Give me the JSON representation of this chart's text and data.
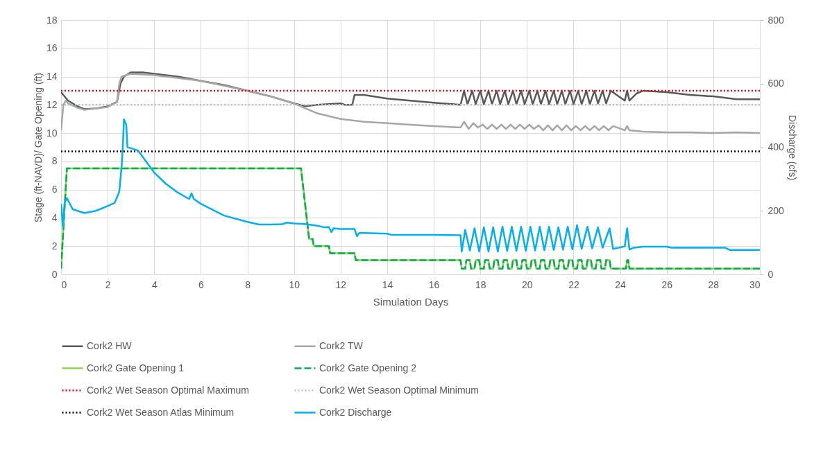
{
  "chart_data": {
    "type": "line",
    "xlabel": "Simulation Days",
    "ylabel": "Stage (ft-NAVD)/ Gate Opening (ft)",
    "y2label": "Discharge (cfs)",
    "xlim": [
      0,
      30
    ],
    "xticks": [
      0,
      2,
      4,
      6,
      8,
      10,
      12,
      14,
      16,
      18,
      20,
      22,
      24,
      26,
      28,
      30
    ],
    "ylim": [
      0,
      18
    ],
    "yticks": [
      0,
      2,
      4,
      6,
      8,
      10,
      12,
      14,
      16,
      18
    ],
    "y2lim": [
      0,
      800
    ],
    "y2ticks": [
      0,
      200,
      400,
      600,
      800
    ],
    "grid": true,
    "legend": "bottom",
    "series": [
      {
        "name": "Cork2 HW",
        "color": "#595959",
        "line_style": "solid",
        "x": [
          0,
          0.3,
          0.7,
          1,
          1.5,
          2,
          2.4,
          2.55,
          2.7,
          3,
          3.5,
          4,
          5,
          6,
          7,
          8,
          9,
          10,
          10.5,
          11,
          11.5,
          12,
          12.2,
          12.5,
          12.6,
          13,
          14,
          15,
          16,
          17.15,
          17.3,
          17.45,
          17.65,
          17.8,
          18.0,
          18.15,
          18.35,
          18.5,
          18.7,
          18.85,
          19.05,
          19.2,
          19.4,
          19.55,
          19.75,
          19.9,
          20.1,
          20.25,
          20.45,
          20.6,
          20.8,
          20.95,
          21.15,
          21.3,
          21.5,
          21.65,
          21.85,
          22.0,
          22.2,
          22.35,
          22.55,
          22.7,
          22.9,
          23.05,
          23.25,
          23.4,
          23.6,
          24.2,
          24.3,
          24.4,
          24.7,
          25,
          26,
          27,
          28,
          29,
          30
        ],
        "values": [
          12.9,
          12.3,
          11.9,
          11.7,
          11.75,
          11.9,
          12.2,
          13.5,
          14.0,
          14.3,
          14.3,
          14.2,
          14.0,
          13.7,
          13.4,
          13.0,
          12.6,
          12.1,
          11.9,
          12.0,
          12.05,
          12.1,
          12.0,
          12.0,
          12.7,
          12.7,
          12.45,
          12.3,
          12.15,
          12.0,
          13.0,
          12.05,
          13.0,
          12.05,
          13.0,
          12.05,
          13.0,
          12.05,
          13.0,
          12.05,
          13.0,
          12.05,
          13.0,
          12.05,
          13.0,
          12.05,
          13.0,
          12.05,
          13.0,
          12.05,
          13.0,
          12.05,
          13.0,
          12.05,
          13.0,
          12.05,
          13.0,
          12.05,
          13.0,
          12.05,
          13.0,
          12.05,
          13.0,
          12.1,
          13.0,
          12.1,
          13.0,
          12.3,
          13.0,
          12.3,
          12.8,
          13.0,
          12.9,
          12.7,
          12.6,
          12.4,
          12.4
        ]
      },
      {
        "name": "Cork2 TW",
        "color": "#a6a6a6",
        "line_style": "solid",
        "x": [
          0,
          0.1,
          0.2,
          0.3,
          0.7,
          1,
          2,
          2.4,
          2.5,
          2.6,
          3,
          4,
          5,
          6,
          7,
          8,
          9,
          10,
          11,
          12,
          13,
          14,
          15,
          16,
          17.15,
          17.3,
          17.5,
          17.7,
          17.9,
          18.1,
          18.3,
          18.5,
          18.7,
          18.9,
          19.1,
          19.3,
          19.5,
          19.7,
          19.9,
          20.1,
          20.3,
          20.5,
          20.7,
          20.9,
          21.1,
          21.3,
          21.5,
          21.7,
          21.9,
          22.1,
          22.3,
          22.5,
          22.7,
          22.9,
          23.1,
          23.3,
          23.5,
          23.7,
          24.2,
          24.3,
          24.4,
          25,
          26,
          27,
          28,
          29,
          30
        ],
        "values": [
          10.2,
          12.0,
          12.3,
          12.1,
          11.8,
          11.65,
          11.85,
          12.2,
          13.5,
          14.0,
          14.2,
          14.1,
          13.9,
          13.7,
          13.35,
          13.0,
          12.6,
          12.1,
          11.4,
          11.0,
          10.8,
          10.7,
          10.6,
          10.5,
          10.4,
          10.8,
          10.3,
          10.7,
          10.4,
          10.6,
          10.3,
          10.6,
          10.3,
          10.6,
          10.3,
          10.6,
          10.3,
          10.6,
          10.3,
          10.6,
          10.3,
          10.55,
          10.2,
          10.55,
          10.2,
          10.55,
          10.2,
          10.55,
          10.2,
          10.5,
          10.2,
          10.5,
          10.2,
          10.5,
          10.2,
          10.5,
          10.2,
          10.5,
          10.2,
          10.5,
          10.2,
          10.1,
          10.05,
          10.05,
          10.0,
          10.05,
          10.0
        ]
      },
      {
        "name": "Cork2 Gate Opening 1",
        "color": "#92d050",
        "line_style": "solid",
        "x": [
          0,
          0.25,
          10.3,
          10.65,
          10.8,
          10.85,
          11.5,
          11.55,
          12.6,
          12.65,
          17.15,
          17.2,
          17.35,
          17.4,
          17.55,
          17.6,
          17.75,
          17.8,
          17.95,
          18.0,
          18.15,
          18.2,
          18.35,
          18.4,
          18.55,
          18.6,
          18.75,
          18.8,
          18.95,
          19.0,
          19.15,
          19.2,
          19.35,
          19.4,
          19.55,
          19.6,
          19.75,
          19.8,
          19.95,
          20.0,
          20.15,
          20.2,
          20.35,
          20.4,
          20.55,
          20.6,
          20.75,
          20.8,
          20.95,
          21.0,
          21.15,
          21.2,
          21.35,
          21.4,
          21.55,
          21.6,
          21.75,
          21.8,
          21.95,
          22.0,
          22.15,
          22.2,
          22.35,
          22.4,
          22.55,
          22.6,
          22.75,
          22.8,
          22.95,
          23.0,
          23.15,
          23.2,
          23.35,
          23.4,
          23.55,
          23.6,
          24.25,
          24.3,
          24.35,
          24.4,
          30
        ],
        "values": [
          0.4,
          7.5,
          7.5,
          2.5,
          2.5,
          2.0,
          2.0,
          1.5,
          1.5,
          1.0,
          1.0,
          0.4,
          0.4,
          1.0,
          1.0,
          0.4,
          0.4,
          1.0,
          1.0,
          0.4,
          0.4,
          1.0,
          1.0,
          0.4,
          0.4,
          1.0,
          1.0,
          0.4,
          0.4,
          1.0,
          1.0,
          0.4,
          0.4,
          1.0,
          1.0,
          0.4,
          0.4,
          1.0,
          1.0,
          0.4,
          0.4,
          1.0,
          1.0,
          0.4,
          0.4,
          1.0,
          1.0,
          0.4,
          0.4,
          1.0,
          1.0,
          0.4,
          0.4,
          1.0,
          1.0,
          0.4,
          0.4,
          1.0,
          1.0,
          0.4,
          0.4,
          1.0,
          1.0,
          0.4,
          0.4,
          1.0,
          1.0,
          0.4,
          0.4,
          1.0,
          1.0,
          0.4,
          0.4,
          1.0,
          1.0,
          0.4,
          0.4,
          1.0,
          1.0,
          0.4,
          0.4
        ]
      },
      {
        "name": "Cork2 Gate Opening 2",
        "color": "#00b050",
        "line_style": "dashed",
        "x": [
          0,
          0.25,
          10.3,
          10.65,
          10.8,
          10.85,
          11.5,
          11.55,
          12.6,
          12.65,
          17.15,
          17.2,
          17.35,
          17.4,
          17.55,
          17.6,
          17.75,
          17.8,
          17.95,
          18.0,
          18.15,
          18.2,
          18.35,
          18.4,
          18.55,
          18.6,
          18.75,
          18.8,
          18.95,
          19.0,
          19.15,
          19.2,
          19.35,
          19.4,
          19.55,
          19.6,
          19.75,
          19.8,
          19.95,
          20.0,
          20.15,
          20.2,
          20.35,
          20.4,
          20.55,
          20.6,
          20.75,
          20.8,
          20.95,
          21.0,
          21.15,
          21.2,
          21.35,
          21.4,
          21.55,
          21.6,
          21.75,
          21.8,
          21.95,
          22.0,
          22.15,
          22.2,
          22.35,
          22.4,
          22.55,
          22.6,
          22.75,
          22.8,
          22.95,
          23.0,
          23.15,
          23.2,
          23.35,
          23.4,
          23.55,
          23.6,
          24.25,
          24.3,
          24.35,
          24.4,
          30
        ],
        "values": [
          0.4,
          7.5,
          7.5,
          2.5,
          2.5,
          2.0,
          2.0,
          1.5,
          1.5,
          1.0,
          1.0,
          0.4,
          0.4,
          1.0,
          1.0,
          0.4,
          0.4,
          1.0,
          1.0,
          0.4,
          0.4,
          1.0,
          1.0,
          0.4,
          0.4,
          1.0,
          1.0,
          0.4,
          0.4,
          1.0,
          1.0,
          0.4,
          0.4,
          1.0,
          1.0,
          0.4,
          0.4,
          1.0,
          1.0,
          0.4,
          0.4,
          1.0,
          1.0,
          0.4,
          0.4,
          1.0,
          1.0,
          0.4,
          0.4,
          1.0,
          1.0,
          0.4,
          0.4,
          1.0,
          1.0,
          0.4,
          0.4,
          1.0,
          1.0,
          0.4,
          0.4,
          1.0,
          1.0,
          0.4,
          0.4,
          1.0,
          1.0,
          0.4,
          0.4,
          1.0,
          1.0,
          0.4,
          0.4,
          1.0,
          1.0,
          0.4,
          0.4,
          1.0,
          1.0,
          0.4,
          0.4
        ]
      },
      {
        "name": "Cork2 Wet Season Optimal Maximum",
        "color": "#ff0000",
        "line_style": "dotted",
        "x": [
          0,
          30
        ],
        "values": [
          13,
          13
        ]
      },
      {
        "name": "Cork2  Wet Season Optimal Minimum",
        "color": "#bfbfbf",
        "line_style": "dotted",
        "x": [
          0,
          30
        ],
        "values": [
          12,
          12
        ]
      },
      {
        "name": "Cork2 Wet Season Atlas Minimum",
        "color": "#000000",
        "line_style": "dotted",
        "x": [
          0,
          30
        ],
        "values": [
          8.7,
          8.7
        ]
      },
      {
        "name": "Cork2 Discharge",
        "color": "#00b0f0",
        "line_style": "solid",
        "axis": "y2",
        "x": [
          0,
          0.08,
          0.15,
          0.25,
          0.5,
          1,
          1.5,
          2,
          2.3,
          2.5,
          2.6,
          2.65,
          2.7,
          2.8,
          2.85,
          3.0,
          3.3,
          3.6,
          4,
          4.5,
          5,
          5.5,
          5.6,
          5.7,
          6,
          7,
          8,
          8.5,
          9,
          9.5,
          9.7,
          10,
          10.5,
          11,
          11.3,
          11.5,
          11.6,
          11.7,
          12,
          12.6,
          12.7,
          12.8,
          13,
          14,
          14.2,
          16,
          17.15,
          17.2,
          17.35,
          17.55,
          17.75,
          17.95,
          18.15,
          18.35,
          18.55,
          18.75,
          18.95,
          19.15,
          19.35,
          19.55,
          19.75,
          19.95,
          20.15,
          20.35,
          20.55,
          20.75,
          20.95,
          21.15,
          21.35,
          21.55,
          21.75,
          21.95,
          22.15,
          22.35,
          22.6,
          22.8,
          23.05,
          23.25,
          23.55,
          23.7,
          24.2,
          24.3,
          24.4,
          24.6,
          25,
          26,
          26.2,
          28.5,
          28.7,
          30
        ],
        "values": [
          222,
          150,
          225,
          240,
          205,
          193,
          200,
          215,
          225,
          260,
          340,
          400,
          488,
          470,
          400,
          397,
          390,
          360,
          320,
          285,
          258,
          237,
          255,
          237,
          222,
          185,
          165,
          157,
          157,
          158,
          163,
          160,
          158,
          153,
          148,
          149,
          133,
          145,
          143,
          143,
          120,
          130,
          130,
          128,
          124,
          124,
          123,
          72,
          140,
          75,
          145,
          72,
          148,
          72,
          148,
          72,
          150,
          74,
          150,
          74,
          150,
          74,
          150,
          75,
          150,
          76,
          150,
          77,
          148,
          78,
          150,
          79,
          155,
          80,
          150,
          82,
          148,
          84,
          145,
          80,
          88,
          145,
          78,
          84,
          87,
          87,
          84,
          84,
          77,
          77
        ]
      }
    ]
  }
}
